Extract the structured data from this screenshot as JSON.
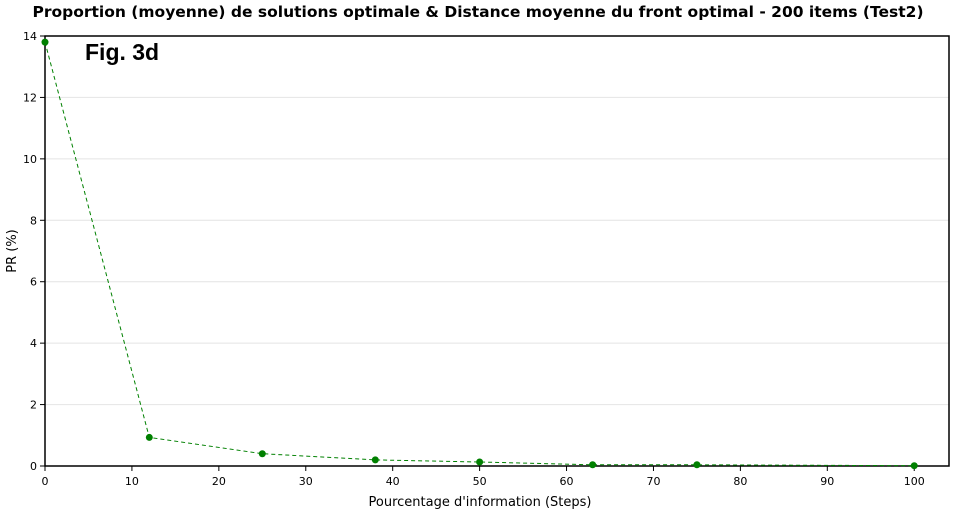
{
  "chart_data": {
    "type": "line",
    "title": "Proportion (moyenne) de solutions optimale & Distance moyenne du front optimal - 200 items (Test2)",
    "annotation": "Fig. 3d",
    "xlabel": "Pourcentage d'information (Steps)",
    "ylabel": "PR (%)",
    "xlim": [
      0,
      104
    ],
    "ylim": [
      0,
      14
    ],
    "xticks": [
      0,
      10,
      20,
      30,
      40,
      50,
      60,
      70,
      80,
      90,
      100
    ],
    "yticks": [
      0,
      2,
      4,
      6,
      8,
      10,
      12,
      14
    ],
    "grid": "horizontal",
    "color": "#008000",
    "line_style": "dashed",
    "series": [
      {
        "x": [
          0,
          12,
          25,
          38,
          50,
          63,
          75,
          100
        ],
        "values": [
          13.8,
          0.93,
          0.4,
          0.2,
          0.13,
          0.04,
          0.04,
          0.01
        ]
      }
    ]
  }
}
